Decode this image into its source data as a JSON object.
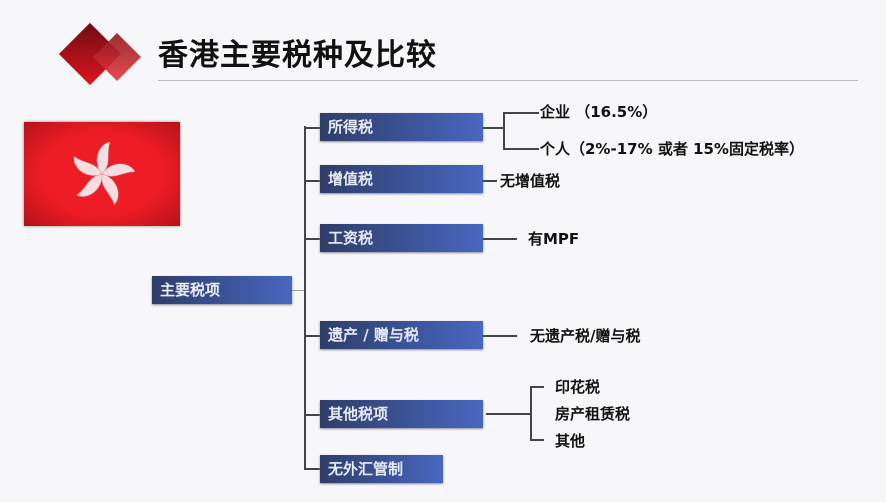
{
  "title": "香港主要税种及比较",
  "root": "主要税项",
  "branches": [
    {
      "label": "所得税",
      "details": [
        "企业 （16.5%）",
        "个人（2%-17% 或者 15%固定税率）"
      ]
    },
    {
      "label": "增值税",
      "details": [
        "无增值税"
      ]
    },
    {
      "label": "工资税",
      "details": [
        "有MPF"
      ]
    },
    {
      "label": "遗产 / 赠与税",
      "details": [
        "无遗产税/赠与税"
      ]
    },
    {
      "label": "其他税项",
      "details": [
        "印花税",
        "房产租赁税",
        "其他"
      ]
    },
    {
      "label": "无外汇管制",
      "details": []
    }
  ],
  "colors": {
    "box": "#3f5aa6",
    "flag": "#ee1c24",
    "logo": "#d0141e"
  }
}
